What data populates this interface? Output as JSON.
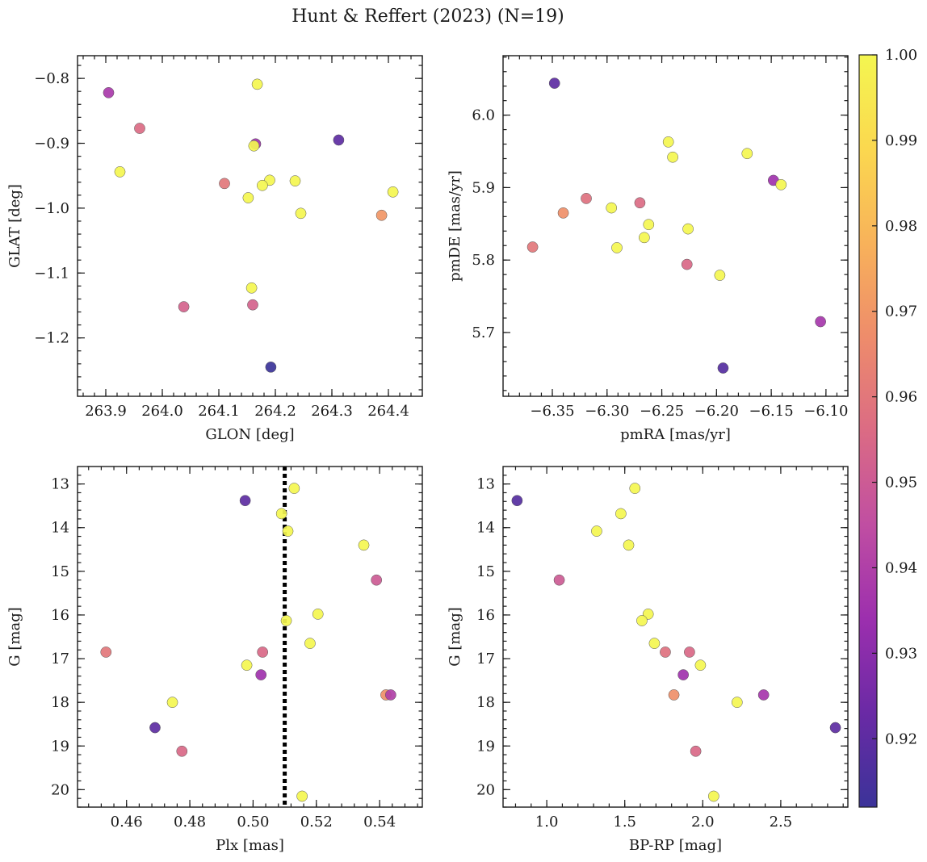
{
  "title": "Hunt & Reffert (2023) (N=19)",
  "chart_data": [
    {
      "type": "scatter",
      "xlabel": "GLON [deg]",
      "ylabel": "GLAT [deg]",
      "xlim": [
        263.85,
        264.46
      ],
      "ylim": [
        -1.29,
        -0.765
      ],
      "y_inverted": false,
      "xticks": [
        263.9,
        264.0,
        264.1,
        264.2,
        264.3,
        264.4
      ],
      "xtick_labels": [
        "263.9",
        "264.0",
        "264.1",
        "264.2",
        "264.3",
        "264.4"
      ],
      "yticks": [
        -0.8,
        -0.9,
        -1.0,
        -1.1,
        -1.2
      ],
      "ytick_labels": [
        "−0.8",
        "−0.9",
        "−1.0",
        "−1.1",
        "−1.2"
      ],
      "points": [
        {
          "x": 263.905,
          "y": -0.822,
          "c": 0.938
        },
        {
          "x": 263.96,
          "y": -0.877,
          "c": 0.956
        },
        {
          "x": 263.925,
          "y": -0.944,
          "c": 1.0
        },
        {
          "x": 264.168,
          "y": -0.809,
          "c": 1.0
        },
        {
          "x": 264.165,
          "y": -0.901,
          "c": 0.935
        },
        {
          "x": 264.162,
          "y": -0.904,
          "c": 1.0
        },
        {
          "x": 264.312,
          "y": -0.895,
          "c": 0.92
        },
        {
          "x": 264.11,
          "y": -0.962,
          "c": 0.96
        },
        {
          "x": 264.152,
          "y": -0.984,
          "c": 1.0
        },
        {
          "x": 264.19,
          "y": -0.957,
          "c": 1.0
        },
        {
          "x": 264.177,
          "y": -0.965,
          "c": 1.0
        },
        {
          "x": 264.235,
          "y": -0.958,
          "c": 1.0
        },
        {
          "x": 264.245,
          "y": -1.008,
          "c": 1.0
        },
        {
          "x": 264.388,
          "y": -1.011,
          "c": 0.97
        },
        {
          "x": 264.408,
          "y": -0.975,
          "c": 1.0
        },
        {
          "x": 264.038,
          "y": -1.152,
          "c": 0.953
        },
        {
          "x": 264.16,
          "y": -1.149,
          "c": 0.953
        },
        {
          "x": 264.158,
          "y": -1.123,
          "c": 1.0
        },
        {
          "x": 264.192,
          "y": -1.245,
          "c": 0.912
        }
      ]
    },
    {
      "type": "scatter",
      "xlabel": "pmRA [mas/yr]",
      "ylabel": "pmDE [mas/yr]",
      "xlim": [
        -6.395,
        -6.08
      ],
      "ylim": [
        5.612,
        6.082
      ],
      "y_inverted": false,
      "xticks": [
        -6.35,
        -6.3,
        -6.25,
        -6.2,
        -6.15,
        -6.1
      ],
      "xtick_labels": [
        "−6.35",
        "−6.30",
        "−6.25",
        "−6.20",
        "−6.15",
        "−6.10"
      ],
      "yticks": [
        5.7,
        5.8,
        5.9,
        6.0
      ],
      "ytick_labels": [
        "5.7",
        "5.8",
        "5.9",
        "6.0"
      ],
      "points": [
        {
          "x": -6.348,
          "y": 6.044,
          "c": 0.92
        },
        {
          "x": -6.244,
          "y": 5.963,
          "c": 1.0
        },
        {
          "x": -6.24,
          "y": 5.942,
          "c": 1.0
        },
        {
          "x": -6.172,
          "y": 5.947,
          "c": 1.0
        },
        {
          "x": -6.148,
          "y": 5.91,
          "c": 0.935
        },
        {
          "x": -6.141,
          "y": 5.904,
          "c": 1.0
        },
        {
          "x": -6.319,
          "y": 5.885,
          "c": 0.958
        },
        {
          "x": -6.34,
          "y": 5.865,
          "c": 0.968
        },
        {
          "x": -6.296,
          "y": 5.872,
          "c": 1.0
        },
        {
          "x": -6.27,
          "y": 5.879,
          "c": 0.956
        },
        {
          "x": -6.262,
          "y": 5.849,
          "c": 1.0
        },
        {
          "x": -6.226,
          "y": 5.843,
          "c": 1.0
        },
        {
          "x": -6.266,
          "y": 5.831,
          "c": 1.0
        },
        {
          "x": -6.291,
          "y": 5.817,
          "c": 1.0
        },
        {
          "x": -6.368,
          "y": 5.818,
          "c": 0.96
        },
        {
          "x": -6.227,
          "y": 5.794,
          "c": 0.955
        },
        {
          "x": -6.197,
          "y": 5.779,
          "c": 1.0
        },
        {
          "x": -6.105,
          "y": 5.715,
          "c": 0.937
        },
        {
          "x": -6.194,
          "y": 5.651,
          "c": 0.918
        }
      ]
    },
    {
      "type": "scatter",
      "xlabel": "Plx [mas]",
      "ylabel": "G [mag]",
      "xlim": [
        0.4445,
        0.5535
      ],
      "ylim": [
        12.6,
        20.4
      ],
      "y_inverted": true,
      "xticks": [
        0.46,
        0.48,
        0.5,
        0.52,
        0.54
      ],
      "xtick_labels": [
        "0.46",
        "0.48",
        "0.50",
        "0.52",
        "0.54"
      ],
      "yticks": [
        13,
        14,
        15,
        16,
        17,
        18,
        19,
        20
      ],
      "ytick_labels": [
        "13",
        "14",
        "15",
        "16",
        "17",
        "18",
        "19",
        "20"
      ],
      "vline": {
        "x": 0.51,
        "style": "dotted",
        "color": "#000000"
      },
      "points": [
        {
          "x": 0.4975,
          "y": 13.38,
          "c": 0.92
        },
        {
          "x": 0.513,
          "y": 13.1,
          "c": 1.0
        },
        {
          "x": 0.509,
          "y": 13.68,
          "c": 1.0
        },
        {
          "x": 0.511,
          "y": 14.08,
          "c": 1.0
        },
        {
          "x": 0.535,
          "y": 14.4,
          "c": 1.0
        },
        {
          "x": 0.539,
          "y": 15.2,
          "c": 0.95
        },
        {
          "x": 0.5205,
          "y": 15.98,
          "c": 1.0
        },
        {
          "x": 0.5105,
          "y": 16.13,
          "c": 1.0
        },
        {
          "x": 0.518,
          "y": 16.65,
          "c": 1.0
        },
        {
          "x": 0.4535,
          "y": 16.85,
          "c": 0.96
        },
        {
          "x": 0.503,
          "y": 16.85,
          "c": 0.955
        },
        {
          "x": 0.498,
          "y": 17.15,
          "c": 1.0
        },
        {
          "x": 0.5025,
          "y": 17.37,
          "c": 0.935
        },
        {
          "x": 0.4745,
          "y": 18.0,
          "c": 1.0
        },
        {
          "x": 0.542,
          "y": 17.83,
          "c": 0.968
        },
        {
          "x": 0.5435,
          "y": 17.83,
          "c": 0.94
        },
        {
          "x": 0.469,
          "y": 18.58,
          "c": 0.92
        },
        {
          "x": 0.4775,
          "y": 19.12,
          "c": 0.955
        },
        {
          "x": 0.5155,
          "y": 20.15,
          "c": 1.0
        }
      ]
    },
    {
      "type": "scatter",
      "xlabel": "BP-RP [mag]",
      "ylabel": "G [mag]",
      "xlim": [
        0.72,
        2.93
      ],
      "ylim": [
        12.6,
        20.4
      ],
      "y_inverted": true,
      "xticks": [
        1.0,
        1.5,
        2.0,
        2.5
      ],
      "xtick_labels": [
        "1.0",
        "1.5",
        "2.0",
        "2.5"
      ],
      "yticks": [
        13,
        14,
        15,
        16,
        17,
        18,
        19,
        20
      ],
      "ytick_labels": [
        "13",
        "14",
        "15",
        "16",
        "17",
        "18",
        "19",
        "20"
      ],
      "points": [
        {
          "x": 0.81,
          "y": 13.38,
          "c": 0.918
        },
        {
          "x": 1.565,
          "y": 13.1,
          "c": 1.0
        },
        {
          "x": 1.475,
          "y": 13.68,
          "c": 1.0
        },
        {
          "x": 1.32,
          "y": 14.08,
          "c": 1.0
        },
        {
          "x": 1.525,
          "y": 14.4,
          "c": 1.0
        },
        {
          "x": 1.08,
          "y": 15.2,
          "c": 0.95
        },
        {
          "x": 1.65,
          "y": 15.98,
          "c": 1.0
        },
        {
          "x": 1.61,
          "y": 16.13,
          "c": 1.0
        },
        {
          "x": 1.69,
          "y": 16.65,
          "c": 1.0
        },
        {
          "x": 1.76,
          "y": 16.85,
          "c": 0.958
        },
        {
          "x": 1.915,
          "y": 16.85,
          "c": 0.955
        },
        {
          "x": 1.985,
          "y": 17.15,
          "c": 1.0
        },
        {
          "x": 1.875,
          "y": 17.37,
          "c": 0.935
        },
        {
          "x": 2.22,
          "y": 18.0,
          "c": 1.0
        },
        {
          "x": 1.815,
          "y": 17.83,
          "c": 0.968
        },
        {
          "x": 2.39,
          "y": 17.83,
          "c": 0.937
        },
        {
          "x": 2.85,
          "y": 18.58,
          "c": 0.92
        },
        {
          "x": 1.955,
          "y": 19.12,
          "c": 0.955
        },
        {
          "x": 2.07,
          "y": 20.15,
          "c": 1.0
        }
      ]
    }
  ],
  "colorbar": {
    "colormap": "plasma-truncated",
    "range": [
      0.912,
      1.0
    ],
    "ticks": [
      0.92,
      0.93,
      0.94,
      0.95,
      0.96,
      0.97,
      0.98,
      0.99,
      1.0
    ],
    "tick_labels": [
      "0.92",
      "0.93",
      "0.94",
      "0.95",
      "0.96",
      "0.97",
      "0.98",
      "0.99",
      "1.00"
    ],
    "color_stops": [
      "#3b3399",
      "#6a2aa5",
      "#9c2fae",
      "#c04ea2",
      "#db6b84",
      "#ee8c6b",
      "#f8b25a",
      "#fbd84f",
      "#f4f650"
    ]
  }
}
